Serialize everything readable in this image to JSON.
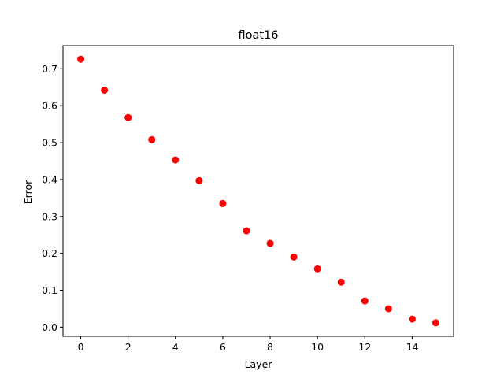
{
  "chart_data": {
    "type": "scatter",
    "title": "float16",
    "xlabel": "Layer",
    "ylabel": "Error",
    "xlim": [
      -0.75,
      15.75
    ],
    "ylim": [
      -0.0248,
      0.7627
    ],
    "xticks": [
      0,
      2,
      4,
      6,
      8,
      10,
      12,
      14
    ],
    "yticks": [
      0.0,
      0.1,
      0.2,
      0.3,
      0.4,
      0.5,
      0.6,
      0.7
    ],
    "ytick_labels": [
      "0.0",
      "0.1",
      "0.2",
      "0.3",
      "0.4",
      "0.5",
      "0.6",
      "0.7"
    ],
    "grid": false,
    "marker_color": "#ff0000",
    "series": [
      {
        "x": [
          0,
          1,
          2,
          3,
          4,
          5,
          6,
          7,
          8,
          9,
          10,
          11,
          12,
          13,
          14,
          15
        ],
        "y": [
          0.726,
          0.642,
          0.568,
          0.508,
          0.453,
          0.397,
          0.335,
          0.261,
          0.227,
          0.19,
          0.158,
          0.122,
          0.071,
          0.05,
          0.022,
          0.012
        ]
      }
    ]
  }
}
